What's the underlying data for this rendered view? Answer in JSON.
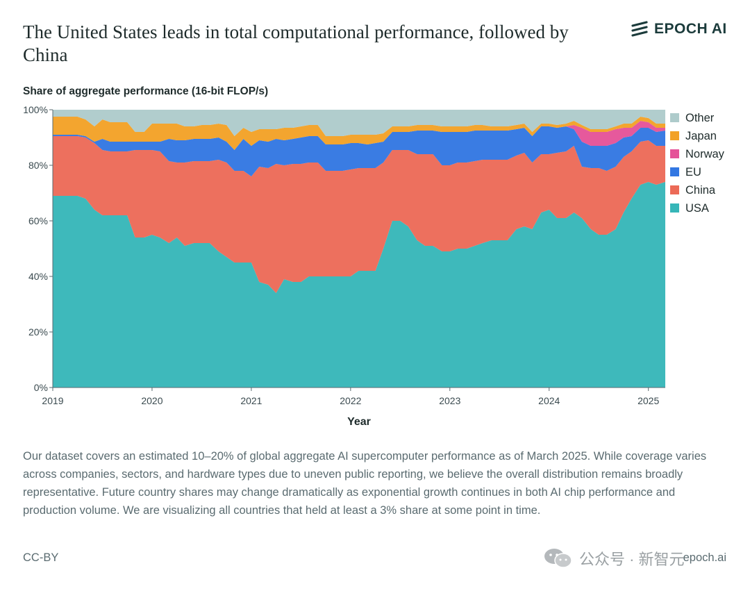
{
  "header": {
    "title": "The United States leads in total computational performance, followed by China",
    "logo_text": "EPOCH AI"
  },
  "chart_data": {
    "type": "area",
    "stacked": true,
    "title": "The United States leads in total computational performance, followed by China",
    "subtitle": "Share of aggregate performance (16-bit FLOP/s)",
    "xlabel": "Year",
    "ylabel": "",
    "xlim": [
      2019.0,
      2025.17
    ],
    "ylim": [
      0,
      100
    ],
    "x_ticks": [
      "2019",
      "2020",
      "2021",
      "2022",
      "2023",
      "2024",
      "2025"
    ],
    "y_ticks": [
      "0%",
      "20%",
      "40%",
      "60%",
      "80%",
      "100%"
    ],
    "legend_position": "right",
    "x": [
      2019.0,
      2019.25,
      2019.33,
      2019.42,
      2019.5,
      2019.58,
      2019.75,
      2019.83,
      2019.92,
      2020.0,
      2020.08,
      2020.17,
      2020.25,
      2020.33,
      2020.42,
      2020.5,
      2020.58,
      2020.67,
      2020.75,
      2020.83,
      2020.92,
      2021.0,
      2021.08,
      2021.17,
      2021.25,
      2021.33,
      2021.42,
      2021.5,
      2021.58,
      2021.67,
      2021.75,
      2021.83,
      2021.92,
      2022.0,
      2022.08,
      2022.17,
      2022.25,
      2022.33,
      2022.42,
      2022.5,
      2022.58,
      2022.67,
      2022.75,
      2022.83,
      2022.92,
      2023.0,
      2023.08,
      2023.17,
      2023.25,
      2023.33,
      2023.42,
      2023.5,
      2023.58,
      2023.67,
      2023.75,
      2023.83,
      2023.92,
      2024.0,
      2024.08,
      2024.17,
      2024.25,
      2024.33,
      2024.42,
      2024.5,
      2024.58,
      2024.67,
      2024.75,
      2024.83,
      2024.92,
      2025.0,
      2025.08,
      2025.17
    ],
    "series": [
      {
        "name": "USA",
        "color": "#36b6b8",
        "values": [
          69,
          69,
          68,
          64,
          62,
          62,
          62,
          54,
          54,
          55,
          54,
          52,
          54,
          51,
          52,
          52,
          52,
          49,
          47,
          45,
          45,
          45,
          38,
          37,
          34,
          39,
          38,
          38,
          40,
          40,
          40,
          40,
          40,
          40,
          42,
          42,
          42,
          50,
          60,
          60,
          58,
          53,
          51,
          51,
          49,
          49,
          50,
          50,
          51,
          52,
          53,
          53,
          53,
          57,
          58,
          57,
          63,
          64,
          61,
          61,
          63,
          61,
          57,
          55,
          55,
          57,
          63,
          68,
          73,
          74,
          73,
          74
        ]
      },
      {
        "name": "China",
        "color": "#ec6a57",
        "values": [
          21.5,
          21.5,
          22,
          24,
          23.5,
          23,
          23,
          31.5,
          31.5,
          30.5,
          31,
          29.5,
          27,
          30,
          29.5,
          29.5,
          29.5,
          33,
          34,
          33,
          33,
          31,
          41.5,
          42,
          46.5,
          41,
          42.5,
          42.5,
          41,
          41,
          38,
          38,
          38,
          38.5,
          37,
          37,
          37,
          31,
          25.5,
          25.5,
          27.5,
          31,
          33,
          33,
          31,
          31,
          31,
          31,
          30.5,
          30,
          29,
          29,
          29,
          26.5,
          26.5,
          24,
          21,
          20,
          23.5,
          24,
          24,
          18.5,
          22,
          24,
          23,
          22.5,
          20,
          17,
          15.5,
          15,
          14,
          13
        ]
      },
      {
        "name": "EU",
        "color": "#3277e2",
        "values": [
          0.5,
          0.5,
          0.5,
          0.5,
          4,
          3.5,
          3.5,
          3,
          3,
          3,
          3.5,
          8,
          8,
          8,
          8,
          8,
          8,
          8,
          7.5,
          7.5,
          11.5,
          11,
          9.5,
          9.5,
          9,
          9,
          9,
          9.5,
          9.5,
          9.5,
          9.5,
          9.5,
          9.5,
          9.5,
          9,
          8.5,
          9,
          7.5,
          6.5,
          6.5,
          6.5,
          8.5,
          8.5,
          8.5,
          12,
          12,
          11,
          11,
          11,
          10.5,
          10.5,
          10.5,
          10.5,
          9.5,
          9,
          9.5,
          10,
          10,
          9,
          9,
          6,
          9,
          8,
          8,
          9,
          8.5,
          7,
          5.5,
          5,
          4.5,
          5,
          5.5
        ]
      },
      {
        "name": "Norway",
        "color": "#e55298",
        "values": [
          0,
          0,
          0,
          0,
          0,
          0,
          0,
          0,
          0,
          0,
          0,
          0,
          0,
          0,
          0,
          0,
          0,
          0,
          0,
          0,
          0,
          0,
          0,
          0,
          0,
          0,
          0,
          0,
          0,
          0,
          0,
          0,
          0,
          0,
          0,
          0,
          0,
          0,
          0,
          0,
          0,
          0,
          0,
          0,
          0,
          0,
          0,
          0,
          0,
          0,
          0,
          0,
          0,
          0,
          0,
          0,
          0,
          0,
          0,
          0,
          1.5,
          5,
          5,
          5,
          5,
          5,
          3.5,
          3,
          2.5,
          2,
          1.5,
          1
        ]
      },
      {
        "name": "Japan",
        "color": "#f2a126",
        "values": [
          6.5,
          6.5,
          6,
          5.5,
          7,
          7,
          7,
          3.5,
          3.5,
          6.5,
          6.5,
          5.5,
          6,
          5,
          4.5,
          5,
          5,
          5,
          6,
          5,
          4,
          5,
          4,
          4.5,
          3.5,
          4.5,
          4,
          4,
          4,
          4,
          3,
          3,
          3,
          3,
          3,
          3.5,
          3,
          3,
          2,
          2,
          2,
          2,
          2,
          2,
          2,
          2,
          2,
          2,
          2,
          2,
          1.5,
          1.5,
          1.5,
          1.5,
          1.5,
          1.5,
          1,
          1,
          1,
          1,
          1.5,
          1,
          1,
          1,
          1,
          1,
          1.5,
          1.5,
          1.5,
          1.5,
          1.5,
          1.5
        ]
      },
      {
        "name": "Other",
        "color": "#aecbcb",
        "values": [
          2.5,
          2.5,
          3.5,
          6,
          3.5,
          4.5,
          4.5,
          8,
          8,
          5,
          5,
          5,
          5,
          6,
          6,
          5.5,
          5.5,
          5,
          5.5,
          9.5,
          6.5,
          8,
          7,
          7,
          7,
          6.5,
          6.5,
          6,
          5.5,
          5.5,
          9.5,
          9.5,
          9.5,
          9,
          9,
          9,
          9,
          8.5,
          6,
          6,
          6,
          5.5,
          5.5,
          5.5,
          6,
          6,
          6,
          6,
          5.5,
          5.5,
          6,
          6,
          6,
          5.5,
          5,
          8,
          5,
          5,
          5.5,
          5,
          4,
          5.5,
          7,
          7,
          7,
          6,
          5,
          5,
          4.5,
          3.5,
          5,
          5
        ]
      }
    ]
  },
  "caption": "Our dataset covers an estimated 10–20% of global aggregate AI supercomputer performance as of March 2025. While coverage varies across companies, sectors, and hardware types due to uneven public reporting, we believe the overall distribution remains broadly representative. Future country shares may change dramatically as exponential growth continues in both AI chip performance and production volume. We are visualizing all countries that held at least a 3% share at some point in time.",
  "footer": {
    "license": "CC-BY",
    "url": "epoch.ai",
    "watermark": "公众号 · 新智元"
  }
}
